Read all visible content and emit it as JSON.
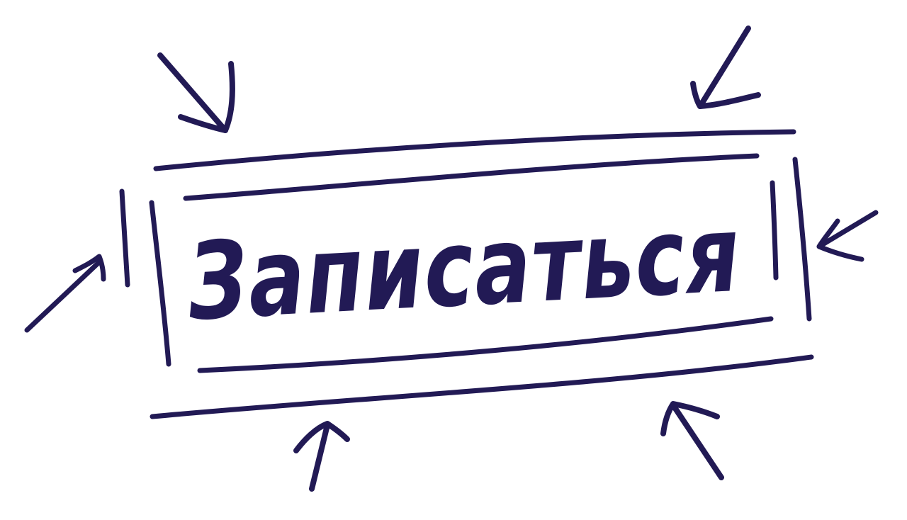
{
  "button": {
    "label": "Записаться"
  },
  "colors": {
    "ink": "#221a55",
    "background": "#ffffff"
  },
  "decorations": {
    "icons": [
      "arrow-top-left-icon",
      "arrow-top-right-icon",
      "arrow-left-icon",
      "arrow-right-icon",
      "arrow-bottom-left-icon",
      "arrow-bottom-right-icon"
    ]
  }
}
